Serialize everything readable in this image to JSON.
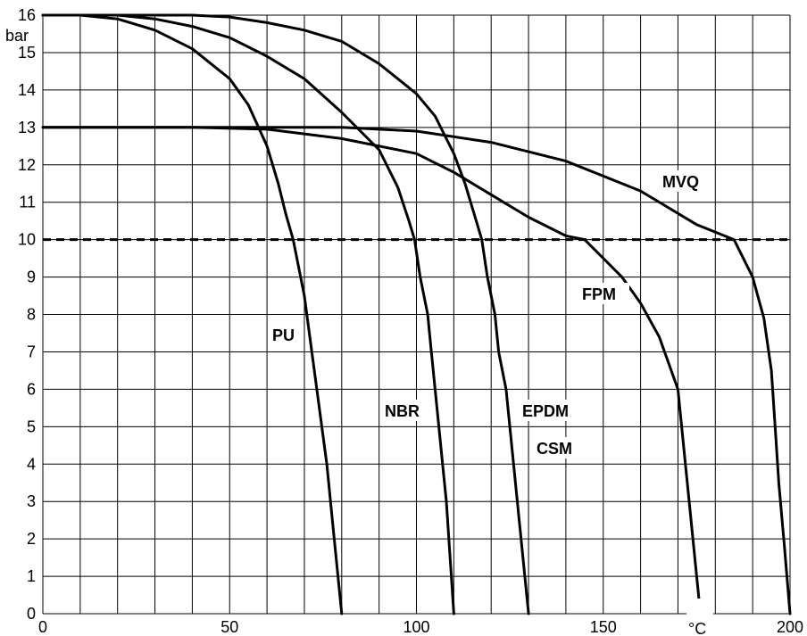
{
  "chart_data": {
    "type": "line",
    "xlim": [
      0,
      200
    ],
    "ylim": [
      0,
      16
    ],
    "x_ticks": [
      "0",
      "50",
      "100",
      "150",
      "200"
    ],
    "y_ticks": [
      "0",
      "1",
      "2",
      "3",
      "4",
      "5",
      "6",
      "7",
      "8",
      "9",
      "10",
      "11",
      "12",
      "13",
      "14",
      "15",
      "16"
    ],
    "y_unit": "bar",
    "x_unit": "°C",
    "grid": true,
    "reference_line": {
      "y": 10,
      "style": "dashed"
    },
    "series": [
      {
        "name": "PU",
        "points": [
          [
            0,
            16
          ],
          [
            10,
            16
          ],
          [
            20,
            15.9
          ],
          [
            30,
            15.6
          ],
          [
            40,
            15.1
          ],
          [
            50,
            14.3
          ],
          [
            55,
            13.6
          ],
          [
            60,
            12.5
          ],
          [
            63,
            11.5
          ],
          [
            65,
            10.7
          ],
          [
            67,
            10
          ],
          [
            70,
            8.5
          ],
          [
            72,
            7
          ],
          [
            74,
            5.5
          ],
          [
            76,
            4
          ],
          [
            78,
            2
          ],
          [
            80,
            0
          ]
        ]
      },
      {
        "name": "NBR",
        "points": [
          [
            0,
            16
          ],
          [
            20,
            16
          ],
          [
            30,
            15.9
          ],
          [
            40,
            15.7
          ],
          [
            50,
            15.4
          ],
          [
            60,
            14.9
          ],
          [
            70,
            14.3
          ],
          [
            80,
            13.4
          ],
          [
            90,
            12.4
          ],
          [
            95,
            11.4
          ],
          [
            98,
            10.5
          ],
          [
            99.5,
            10
          ],
          [
            101,
            9
          ],
          [
            103,
            8
          ],
          [
            104,
            7
          ],
          [
            105,
            6
          ],
          [
            106,
            5
          ],
          [
            107,
            4
          ],
          [
            108,
            3
          ],
          [
            109,
            1.5
          ],
          [
            110,
            0
          ]
        ]
      },
      {
        "name": "EPDM",
        "points": [
          [
            0,
            16
          ],
          [
            40,
            16
          ],
          [
            50,
            15.95
          ],
          [
            60,
            15.8
          ],
          [
            70,
            15.6
          ],
          [
            80,
            15.3
          ],
          [
            90,
            14.7
          ],
          [
            100,
            13.9
          ],
          [
            105,
            13.3
          ],
          [
            110,
            12.3
          ],
          [
            113,
            11.5
          ],
          [
            116,
            10.5
          ],
          [
            117.5,
            10
          ],
          [
            119,
            9
          ],
          [
            121,
            8
          ],
          [
            122,
            7
          ],
          [
            124,
            6
          ],
          [
            125,
            5
          ],
          [
            126,
            4
          ],
          [
            127,
            3
          ],
          [
            128,
            2
          ],
          [
            129,
            1
          ],
          [
            130,
            0
          ]
        ]
      },
      {
        "name": "FPM",
        "points": [
          [
            0,
            13
          ],
          [
            40,
            13
          ],
          [
            60,
            12.95
          ],
          [
            80,
            12.7
          ],
          [
            100,
            12.3
          ],
          [
            110,
            11.8
          ],
          [
            120,
            11.2
          ],
          [
            130,
            10.6
          ],
          [
            140,
            10.1
          ],
          [
            145,
            10
          ],
          [
            150,
            9.5
          ],
          [
            155,
            9
          ],
          [
            160,
            8.3
          ],
          [
            165,
            7.4
          ],
          [
            170,
            6
          ],
          [
            171,
            5
          ],
          [
            172,
            4
          ],
          [
            173,
            3
          ],
          [
            174,
            2
          ],
          [
            175,
            1
          ],
          [
            176,
            0
          ]
        ]
      },
      {
        "name": "MVQ",
        "points": [
          [
            0,
            13
          ],
          [
            80,
            13
          ],
          [
            100,
            12.9
          ],
          [
            120,
            12.6
          ],
          [
            140,
            12.1
          ],
          [
            160,
            11.3
          ],
          [
            175,
            10.4
          ],
          [
            185,
            10
          ],
          [
            190,
            9
          ],
          [
            193,
            7.9
          ],
          [
            195,
            6.5
          ],
          [
            196,
            5
          ],
          [
            197,
            3.5
          ],
          [
            198.5,
            1.8
          ],
          [
            200,
            0
          ]
        ]
      }
    ]
  }
}
